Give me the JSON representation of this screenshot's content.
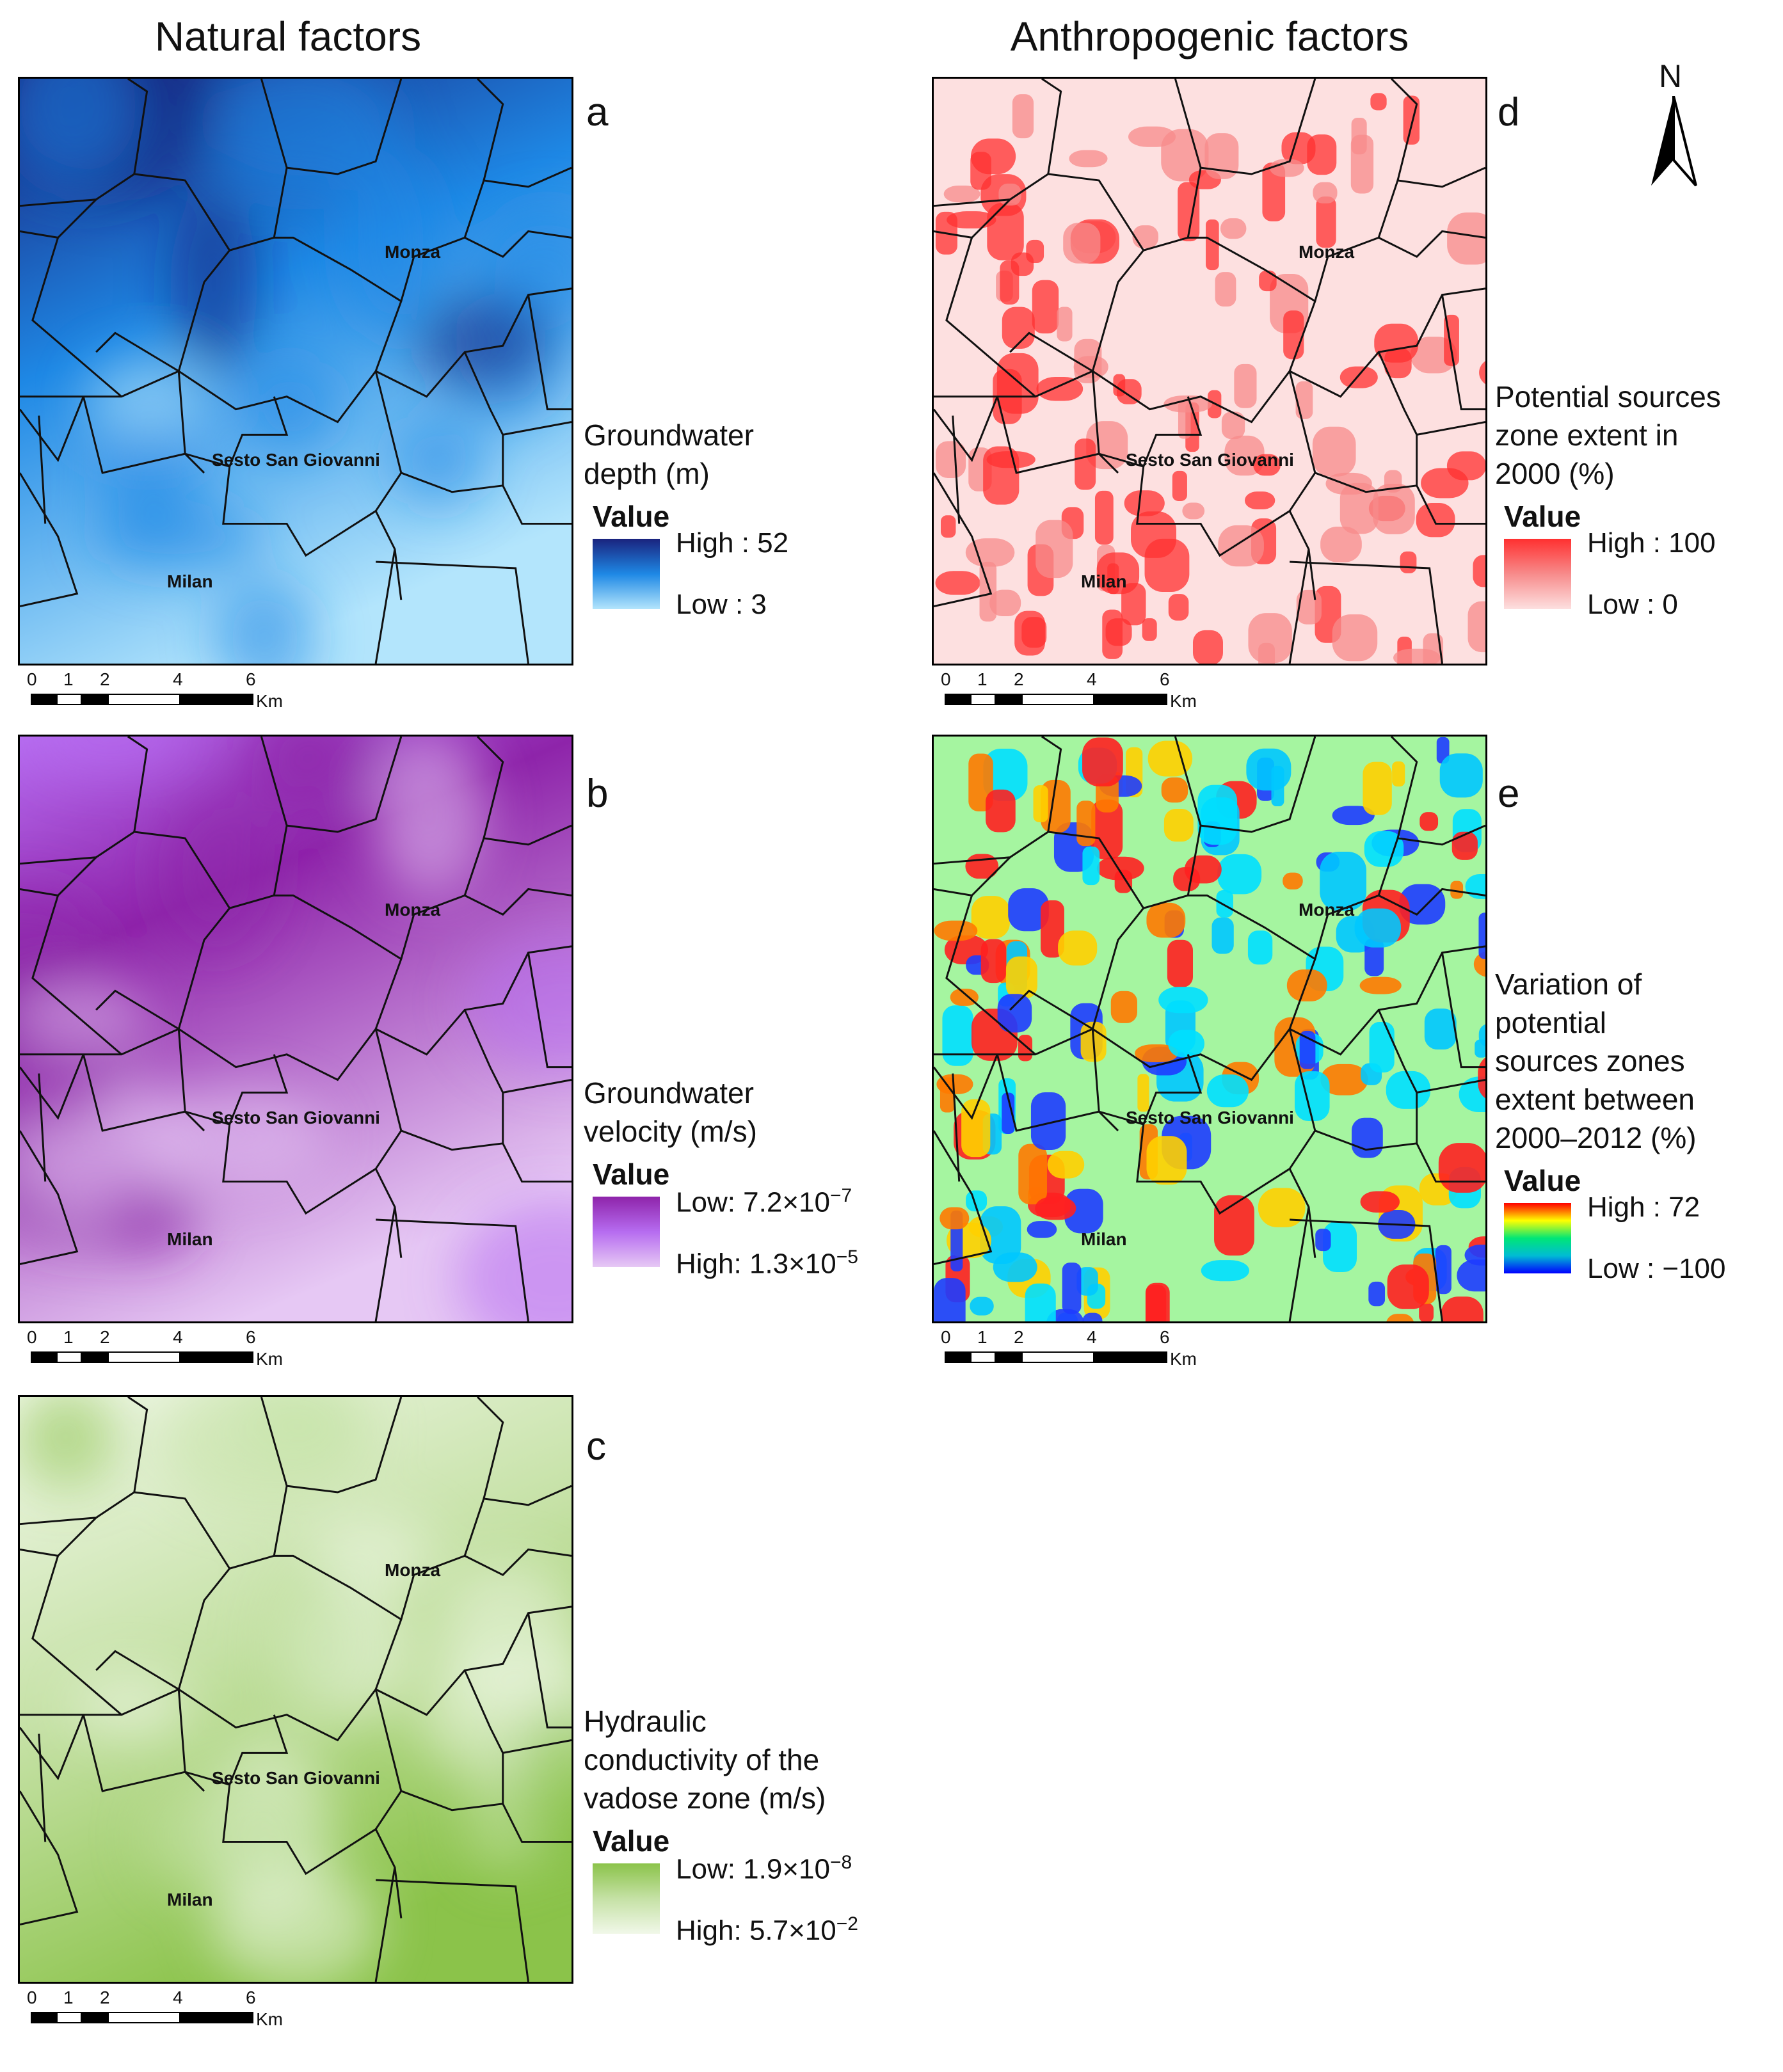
{
  "columns": {
    "natural": "Natural factors",
    "anthropogenic": "Anthropogenic factors"
  },
  "north_label": "N",
  "cities": {
    "monza": "Monza",
    "sesto": "Sesto San Giovanni",
    "milan": "Milan"
  },
  "scale": {
    "ticks": [
      "0",
      "1",
      "2",
      "4",
      "6"
    ],
    "unit": "Km"
  },
  "panels": {
    "a": {
      "letter": "a",
      "title_lines": [
        "Groundwater",
        "depth (m)"
      ],
      "value_label": "Value",
      "top_label": "High : 52",
      "bottom_label": "Low : 3",
      "colors": [
        "#1a237e",
        "#1e88e5",
        "#b3e5fc"
      ]
    },
    "b": {
      "letter": "b",
      "title_lines": [
        "Groundwater",
        "velocity (m/s)"
      ],
      "value_label": "Value",
      "top_label": "Low:  7.2×10",
      "top_exp": "−7",
      "bottom_label": "High: 1.3×10",
      "bottom_exp": "−5",
      "colors": [
        "#8e24aa",
        "#b66cf0",
        "#e6c8f4"
      ]
    },
    "c": {
      "letter": "c",
      "title_lines": [
        "Hydraulic",
        "conductivity of the",
        "vadose zone (m/s)"
      ],
      "value_label": "Value",
      "top_label": "Low:  1.9×10",
      "top_exp": "−8",
      "bottom_label": "High:  5.7×10",
      "bottom_exp": "−2",
      "colors": [
        "#8bc34a",
        "#c5e1a5",
        "#f1f8e9"
      ]
    },
    "d": {
      "letter": "d",
      "title_lines": [
        "Potential sources",
        "zone extent in",
        "2000 (%)"
      ],
      "value_label": "Value",
      "top_label": "High : 100",
      "bottom_label": "Low : 0",
      "colors": [
        "#ff3030",
        "#f78b8b",
        "#fde0e0"
      ]
    },
    "e": {
      "letter": "e",
      "title_lines": [
        "Variation of",
        "potential",
        "sources zones",
        "extent between",
        "2000–2012 (%)"
      ],
      "value_label": "Value",
      "top_label": "High : 72",
      "bottom_label": "Low : −100",
      "colors": [
        "#ff0000",
        "#ffff00",
        "#00e676",
        "#00bcd4",
        "#0000ff"
      ]
    }
  }
}
